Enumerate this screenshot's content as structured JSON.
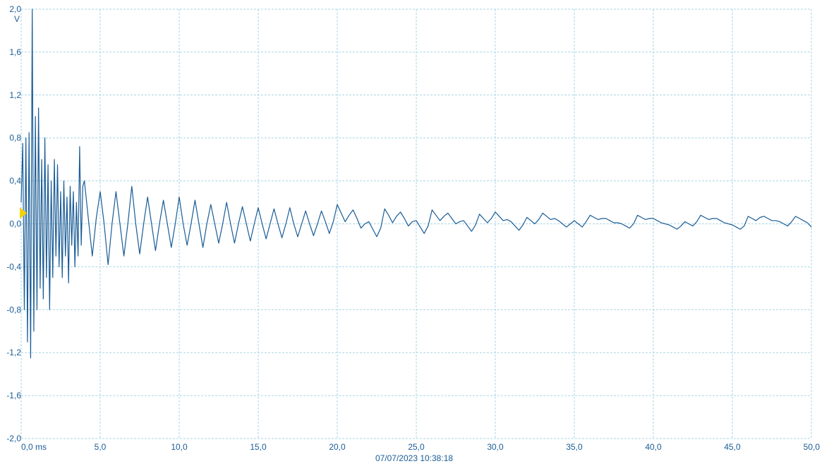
{
  "chart_data": {
    "type": "line",
    "ylabel": "V",
    "annotation": "07/07/2023 10:38:18",
    "xlim": [
      0,
      50
    ],
    "ylim": [
      -2,
      2
    ],
    "xticks": [
      {
        "value": 0,
        "label": "0,0 ms"
      },
      {
        "value": 5,
        "label": "5,0"
      },
      {
        "value": 10,
        "label": "10,0"
      },
      {
        "value": 15,
        "label": "15,0"
      },
      {
        "value": 20,
        "label": "20,0"
      },
      {
        "value": 25,
        "label": "25,0"
      },
      {
        "value": 30,
        "label": "30,0"
      },
      {
        "value": 35,
        "label": "35,0"
      },
      {
        "value": 40,
        "label": "40,0"
      },
      {
        "value": 45,
        "label": "45,0"
      },
      {
        "value": 50,
        "label": "50,0"
      }
    ],
    "yticks": [
      {
        "value": 2,
        "label": "2,0"
      },
      {
        "value": 1.6,
        "label": "1,6"
      },
      {
        "value": 1.2,
        "label": "1,2"
      },
      {
        "value": 0.8,
        "label": "0,8"
      },
      {
        "value": 0.4,
        "label": "0,4"
      },
      {
        "value": 0,
        "label": "0,0"
      },
      {
        "value": -0.4,
        "label": "-0,4"
      },
      {
        "value": -0.8,
        "label": "-0,8"
      },
      {
        "value": -1.2,
        "label": "-1,2"
      },
      {
        "value": -1.6,
        "label": "-1,6"
      },
      {
        "value": -2,
        "label": "-2,0"
      }
    ],
    "grid": true,
    "trigger_level": 0.1,
    "trigger_color": "#f5d300",
    "series": [
      {
        "color": "#1a5c96",
        "x": [
          0,
          0.1,
          0.2,
          0.3,
          0.4,
          0.5,
          0.6,
          0.7,
          0.8,
          0.9,
          1,
          1.1,
          1.2,
          1.3,
          1.4,
          1.5,
          1.6,
          1.7,
          1.8,
          1.9,
          2,
          2.1,
          2.2,
          2.3,
          2.4,
          2.5,
          2.6,
          2.7,
          2.8,
          2.9,
          3,
          3.1,
          3.2,
          3.3,
          3.4,
          3.5,
          3.6,
          3.7,
          3.8,
          3.9,
          4,
          4.25,
          4.5,
          4.75,
          5,
          5.25,
          5.5,
          5.75,
          6,
          6.25,
          6.5,
          6.75,
          7,
          7.25,
          7.5,
          7.75,
          8,
          8.25,
          8.5,
          8.75,
          9,
          9.25,
          9.5,
          9.75,
          10,
          10.25,
          10.5,
          10.75,
          11,
          11.25,
          11.5,
          11.75,
          12,
          12.25,
          12.5,
          12.75,
          13,
          13.25,
          13.5,
          13.75,
          14,
          14.25,
          14.5,
          14.75,
          15,
          15.25,
          15.5,
          15.75,
          16,
          16.25,
          16.5,
          16.75,
          17,
          17.25,
          17.5,
          17.75,
          18,
          18.25,
          18.5,
          18.75,
          19,
          19.25,
          19.5,
          19.75,
          20,
          20.25,
          20.5,
          20.75,
          21,
          21.25,
          21.5,
          21.75,
          22,
          22.25,
          22.5,
          22.75,
          23,
          23.25,
          23.5,
          23.75,
          24,
          24.25,
          24.5,
          24.75,
          25,
          25.25,
          25.5,
          25.75,
          26,
          26.25,
          26.5,
          26.75,
          27,
          27.25,
          27.5,
          27.75,
          28,
          28.25,
          28.5,
          28.75,
          29,
          29.25,
          29.5,
          29.75,
          30,
          30.25,
          30.5,
          30.75,
          31,
          31.25,
          31.5,
          31.75,
          32,
          32.25,
          32.5,
          32.75,
          33,
          33.25,
          33.5,
          33.75,
          34,
          34.25,
          34.5,
          34.75,
          35,
          35.25,
          35.5,
          35.75,
          36,
          36.25,
          36.5,
          36.75,
          37,
          37.25,
          37.5,
          37.75,
          38,
          38.25,
          38.5,
          38.75,
          39,
          39.25,
          39.5,
          39.75,
          40,
          40.25,
          40.5,
          40.75,
          41,
          41.25,
          41.5,
          41.75,
          42,
          42.25,
          42.5,
          42.75,
          43,
          43.25,
          43.5,
          43.75,
          44,
          44.25,
          44.5,
          44.75,
          45,
          45.25,
          45.5,
          45.75,
          46,
          46.25,
          46.5,
          46.75,
          47,
          47.25,
          47.5,
          47.75,
          48,
          48.25,
          48.5,
          48.75,
          49,
          49.25,
          49.5,
          49.75,
          50
        ],
        "values": [
          0.2,
          0.75,
          -0.8,
          0.8,
          -1.1,
          0.85,
          -1.25,
          2.0,
          -1.0,
          1.0,
          -0.8,
          1.08,
          -0.6,
          0.6,
          -0.7,
          0.8,
          -0.5,
          0.55,
          -0.8,
          0.4,
          -0.5,
          0.6,
          -0.3,
          0.55,
          -0.4,
          0.3,
          -0.5,
          0.4,
          -0.3,
          0.25,
          -0.55,
          0.35,
          -0.2,
          0.3,
          -0.4,
          0.2,
          -0.3,
          0.72,
          -0.2,
          0.35,
          0.4,
          0.05,
          -0.3,
          0.05,
          0.3,
          0.0,
          -0.38,
          0.0,
          0.3,
          0.0,
          -0.3,
          0.0,
          0.35,
          0.0,
          -0.28,
          0.0,
          0.25,
          0.0,
          -0.25,
          0.0,
          0.22,
          0.0,
          -0.22,
          0.0,
          0.25,
          0.0,
          -0.2,
          0.0,
          0.22,
          0.0,
          -0.22,
          0.0,
          0.18,
          0.0,
          -0.18,
          0.0,
          0.2,
          0.0,
          -0.18,
          0.0,
          0.16,
          0.0,
          -0.16,
          0.0,
          0.15,
          0.0,
          -0.14,
          0.0,
          0.14,
          0.0,
          -0.13,
          0.0,
          0.15,
          0.0,
          -0.12,
          0.0,
          0.12,
          0.0,
          -0.11,
          0.0,
          0.12,
          0.02,
          -0.09,
          0.02,
          0.18,
          0.1,
          0.02,
          0.08,
          0.13,
          0.05,
          -0.04,
          0.0,
          0.02,
          -0.05,
          -0.12,
          -0.04,
          0.14,
          0.08,
          0.01,
          0.07,
          0.11,
          0.05,
          -0.02,
          0.02,
          0.03,
          -0.03,
          -0.09,
          -0.02,
          0.13,
          0.08,
          0.03,
          0.07,
          0.1,
          0.05,
          0.0,
          0.02,
          0.03,
          -0.02,
          -0.07,
          -0.01,
          0.09,
          0.05,
          0.01,
          0.05,
          0.11,
          0.07,
          0.03,
          0.04,
          0.02,
          -0.02,
          -0.06,
          -0.01,
          0.06,
          0.03,
          0.0,
          0.04,
          0.1,
          0.07,
          0.04,
          0.05,
          0.03,
          0.0,
          -0.03,
          0.0,
          0.03,
          0.0,
          -0.03,
          0.02,
          0.08,
          0.06,
          0.04,
          0.05,
          0.05,
          0.03,
          0.01,
          0.01,
          0.0,
          -0.02,
          -0.04,
          0.0,
          0.08,
          0.06,
          0.04,
          0.05,
          0.05,
          0.03,
          0.01,
          0.0,
          -0.01,
          -0.03,
          -0.05,
          -0.02,
          0.02,
          0.0,
          -0.02,
          0.02,
          0.08,
          0.06,
          0.04,
          0.05,
          0.05,
          0.03,
          0.01,
          0.0,
          -0.01,
          -0.03,
          -0.05,
          -0.02,
          0.07,
          0.05,
          0.03,
          0.06,
          0.07,
          0.05,
          0.03,
          0.03,
          0.02,
          0.0,
          -0.02,
          0.02,
          0.07,
          0.05,
          0.03,
          0.01,
          -0.03
        ]
      }
    ]
  }
}
